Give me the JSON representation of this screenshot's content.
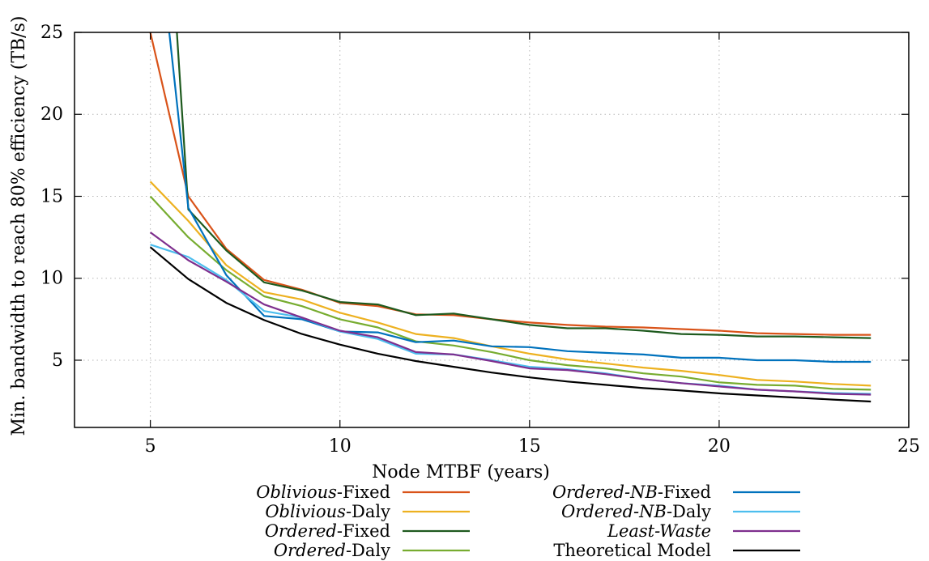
{
  "chart_data": {
    "type": "line",
    "xlabel": "Node MTBF (years)",
    "ylabel": "Min. bandwidth to reach 80% efficiency (TB/s)",
    "xlim": [
      3,
      25
    ],
    "ylim": [
      0.9,
      25
    ],
    "xticks": [
      "5",
      "10",
      "15",
      "20",
      "25"
    ],
    "yticks": [
      "5",
      "10",
      "15",
      "20",
      "25"
    ],
    "grid": true,
    "legend_position": "below",
    "series": [
      {
        "name": "Oblivious-Fixed",
        "name_parts": [
          {
            "text": "Oblivious",
            "italic": true
          },
          {
            "text": "-Fixed",
            "italic": false
          }
        ],
        "color": "#d95319",
        "x": [
          5,
          6,
          7,
          8,
          9,
          10,
          11,
          12,
          13,
          14,
          15,
          16,
          17,
          18,
          19,
          20,
          21,
          22,
          23,
          24
        ],
        "y": [
          25,
          15,
          11.8,
          9.9,
          9.3,
          8.5,
          8.3,
          7.8,
          7.75,
          7.5,
          7.3,
          7.15,
          7.05,
          7.0,
          6.9,
          6.8,
          6.65,
          6.6,
          6.55,
          6.55
        ]
      },
      {
        "name": "Oblivious-Daly",
        "name_parts": [
          {
            "text": "Oblivious",
            "italic": true
          },
          {
            "text": "-Daly",
            "italic": false
          }
        ],
        "color": "#edb120",
        "x": [
          5,
          6,
          7,
          8,
          9,
          10,
          11,
          12,
          13,
          14,
          15,
          16,
          17,
          18,
          19,
          20,
          21,
          22,
          23,
          24
        ],
        "y": [
          15.9,
          13.5,
          10.8,
          9.15,
          8.7,
          7.9,
          7.3,
          6.6,
          6.35,
          5.85,
          5.4,
          5.05,
          4.8,
          4.55,
          4.35,
          4.1,
          3.8,
          3.7,
          3.55,
          3.45
        ]
      },
      {
        "name": "Ordered-Fixed",
        "name_parts": [
          {
            "text": "Ordered",
            "italic": true
          },
          {
            "text": "-Fixed",
            "italic": false
          }
        ],
        "color": "#1e5a1e",
        "x": [
          5.7,
          6,
          7,
          8,
          9,
          10,
          11,
          12,
          13,
          14,
          15,
          16,
          17,
          18,
          19,
          20,
          21,
          22,
          23,
          24
        ],
        "y": [
          25,
          14.2,
          11.7,
          9.75,
          9.25,
          8.55,
          8.4,
          7.75,
          7.85,
          7.5,
          7.15,
          6.95,
          6.95,
          6.8,
          6.6,
          6.55,
          6.45,
          6.45,
          6.4,
          6.35
        ]
      },
      {
        "name": "Ordered-Daly",
        "name_parts": [
          {
            "text": "Ordered",
            "italic": true
          },
          {
            "text": "-Daly",
            "italic": false
          }
        ],
        "color": "#77ac30",
        "x": [
          5,
          6,
          7,
          8,
          9,
          10,
          11,
          12,
          13,
          14,
          15,
          16,
          17,
          18,
          19,
          20,
          21,
          22,
          23,
          24
        ],
        "y": [
          15,
          12.5,
          10.5,
          8.9,
          8.3,
          7.5,
          7.0,
          6.15,
          5.9,
          5.5,
          5.0,
          4.7,
          4.5,
          4.2,
          4.0,
          3.65,
          3.5,
          3.45,
          3.25,
          3.2
        ]
      },
      {
        "name": "Ordered-NB-Fixed",
        "name_parts": [
          {
            "text": "Ordered-NB",
            "italic": true
          },
          {
            "text": "-Fixed",
            "italic": false
          }
        ],
        "color": "#0072bd",
        "x": [
          5.5,
          6,
          7,
          8,
          9,
          10,
          11,
          12,
          13,
          14,
          15,
          16,
          17,
          18,
          19,
          20,
          21,
          22,
          23,
          24
        ],
        "y": [
          25,
          14.3,
          10.2,
          7.7,
          7.5,
          6.75,
          6.7,
          6.1,
          6.2,
          5.85,
          5.8,
          5.55,
          5.45,
          5.35,
          5.15,
          5.15,
          5.0,
          5.0,
          4.9,
          4.9
        ]
      },
      {
        "name": "Ordered-NB-Daly",
        "name_parts": [
          {
            "text": "Ordered-NB",
            "italic": true
          },
          {
            "text": "-Daly",
            "italic": false
          }
        ],
        "color": "#4dbeee",
        "x": [
          5,
          6,
          7,
          8,
          9,
          10,
          11,
          12,
          13,
          14,
          15,
          16,
          17,
          18,
          19,
          20,
          21,
          22,
          23,
          24
        ],
        "y": [
          12.05,
          11.3,
          9.9,
          8.0,
          7.6,
          6.75,
          6.3,
          5.4,
          5.35,
          5.0,
          4.6,
          4.45,
          4.2,
          3.85,
          3.6,
          3.45,
          3.2,
          3.1,
          3.0,
          2.95
        ]
      },
      {
        "name": "Least-Waste",
        "name_parts": [
          {
            "text": "Least-Waste",
            "italic": true
          }
        ],
        "color": "#7e2f8e",
        "x": [
          5,
          6,
          7,
          8,
          9,
          10,
          11,
          12,
          13,
          14,
          15,
          16,
          17,
          18,
          19,
          20,
          21,
          22,
          23,
          24
        ],
        "y": [
          12.8,
          11.1,
          9.8,
          8.4,
          7.6,
          6.8,
          6.4,
          5.5,
          5.35,
          4.95,
          4.5,
          4.4,
          4.15,
          3.85,
          3.6,
          3.4,
          3.2,
          3.1,
          2.95,
          2.9
        ]
      },
      {
        "name": "Theoretical Model",
        "name_parts": [
          {
            "text": "Theoretical Model",
            "italic": false
          }
        ],
        "color": "#000000",
        "x": [
          5,
          6,
          7,
          8,
          9,
          10,
          11,
          12,
          13,
          14,
          15,
          16,
          17,
          18,
          19,
          20,
          21,
          22,
          23,
          24
        ],
        "y": [
          11.9,
          9.95,
          8.5,
          7.45,
          6.6,
          5.95,
          5.4,
          4.95,
          4.6,
          4.25,
          3.95,
          3.7,
          3.5,
          3.3,
          3.15,
          2.98,
          2.85,
          2.72,
          2.6,
          2.48
        ]
      }
    ]
  }
}
